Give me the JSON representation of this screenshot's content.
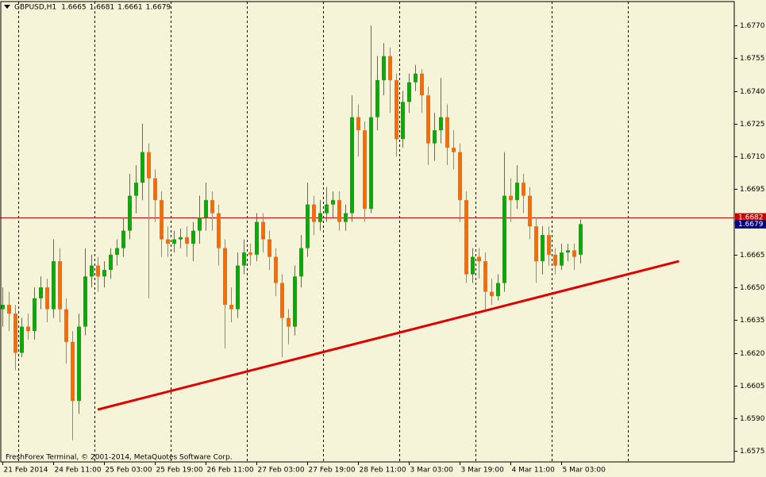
{
  "chart_data": {
    "type": "candlestick",
    "title": "GBPUSD,H1",
    "header_ohlc": [
      1.6665,
      1.6681,
      1.6661,
      1.6679
    ],
    "footer_text": "FreshForex Terminal, © 2001-2014, MetaQuotes Software Corp.",
    "up_color": "#00b000",
    "down_color": "#ff6a00",
    "open": [
      1.664,
      1.6642,
      1.6638,
      1.662,
      1.6632,
      1.663,
      1.6645,
      1.665,
      1.664,
      1.6662,
      1.664,
      1.6625,
      1.6598,
      1.6632,
      1.6655,
      1.666,
      1.6655,
      1.6658,
      1.6665,
      1.6668,
      1.6676,
      1.6692,
      1.6698,
      1.6712,
      1.67,
      1.669,
      1.6672,
      1.667,
      1.6672,
      1.6673,
      1.667,
      1.6676,
      1.6682,
      1.669,
      1.6684,
      1.6668,
      1.6642,
      1.664,
      1.666,
      1.6666,
      1.6665,
      1.668,
      1.6672,
      1.6664,
      1.6652,
      1.6636,
      1.6632,
      1.6655,
      1.6668,
      1.6688,
      1.668,
      1.6684,
      1.6688,
      1.669,
      1.668,
      1.6684,
      1.6728,
      1.6722,
      1.6686,
      1.6728,
      1.6745,
      1.6756,
      1.6745,
      1.6718,
      1.6735,
      1.6744,
      1.6748,
      1.6738,
      1.6716,
      1.6722,
      1.6728,
      1.6714,
      1.6712,
      1.669,
      1.6656,
      1.6664,
      1.6662,
      1.6648,
      1.6646,
      1.6652,
      1.6692,
      1.669,
      1.6698,
      1.6692,
      1.6678,
      1.6662,
      1.6674,
      1.6665,
      1.666,
      1.6666,
      1.6667,
      1.6665
    ],
    "high": [
      1.665,
      1.6648,
      1.6642,
      1.6636,
      1.6638,
      1.665,
      1.6655,
      1.6654,
      1.6672,
      1.6668,
      1.6645,
      1.663,
      1.6638,
      1.6668,
      1.6665,
      1.6664,
      1.6662,
      1.6668,
      1.6672,
      1.6682,
      1.6702,
      1.6706,
      1.6725,
      1.6716,
      1.6704,
      1.6694,
      1.6678,
      1.6676,
      1.6677,
      1.6678,
      1.668,
      1.6692,
      1.6698,
      1.6694,
      1.6688,
      1.6672,
      1.665,
      1.6666,
      1.6672,
      1.667,
      1.6684,
      1.6684,
      1.6676,
      1.6668,
      1.6656,
      1.664,
      1.666,
      1.6674,
      1.6698,
      1.6692,
      1.669,
      1.6696,
      1.6694,
      1.6694,
      1.6688,
      1.6738,
      1.6734,
      1.6726,
      1.677,
      1.6756,
      1.6762,
      1.676,
      1.6748,
      1.674,
      1.6748,
      1.6752,
      1.675,
      1.6742,
      1.673,
      1.6746,
      1.6734,
      1.6722,
      1.6716,
      1.6694,
      1.6668,
      1.6668,
      1.6666,
      1.6654,
      1.6656,
      1.6712,
      1.67,
      1.6706,
      1.6702,
      1.6696,
      1.6682,
      1.6678,
      1.6678,
      1.6668,
      1.667,
      1.667,
      1.667,
      1.6681
    ],
    "low": [
      1.6632,
      1.663,
      1.6612,
      1.6618,
      1.6626,
      1.6626,
      1.664,
      1.6634,
      1.6636,
      1.6634,
      1.6615,
      1.658,
      1.6592,
      1.6628,
      1.665,
      1.6648,
      1.665,
      1.6654,
      1.666,
      1.6664,
      1.6672,
      1.6684,
      1.669,
      1.6645,
      1.668,
      1.6664,
      1.6664,
      1.6666,
      1.6668,
      1.6664,
      1.6662,
      1.667,
      1.6676,
      1.6676,
      1.666,
      1.6622,
      1.6634,
      1.6636,
      1.6656,
      1.666,
      1.6662,
      1.6666,
      1.6658,
      1.6646,
      1.6618,
      1.6624,
      1.6628,
      1.665,
      1.6664,
      1.6674,
      1.6676,
      1.668,
      1.6682,
      1.6676,
      1.6676,
      1.668,
      1.671,
      1.668,
      1.6684,
      1.6722,
      1.6738,
      1.673,
      1.671,
      1.6714,
      1.673,
      1.674,
      1.673,
      1.6706,
      1.6708,
      1.6716,
      1.6706,
      1.6704,
      1.668,
      1.6652,
      1.6652,
      1.6654,
      1.664,
      1.6642,
      1.6644,
      1.6648,
      1.668,
      1.6686,
      1.6684,
      1.6672,
      1.6652,
      1.6656,
      1.666,
      1.6656,
      1.6658,
      1.6662,
      1.6658,
      1.6661
    ],
    "close": [
      1.6642,
      1.6638,
      1.662,
      1.6632,
      1.663,
      1.6645,
      1.665,
      1.664,
      1.6662,
      1.664,
      1.6625,
      1.6598,
      1.6632,
      1.6655,
      1.666,
      1.6655,
      1.6658,
      1.6665,
      1.6668,
      1.6676,
      1.6692,
      1.6698,
      1.6712,
      1.67,
      1.669,
      1.6672,
      1.667,
      1.6672,
      1.6673,
      1.667,
      1.6676,
      1.6682,
      1.669,
      1.6684,
      1.6668,
      1.6642,
      1.664,
      1.666,
      1.6666,
      1.6665,
      1.668,
      1.6672,
      1.6664,
      1.6652,
      1.6636,
      1.6632,
      1.6655,
      1.6668,
      1.6688,
      1.668,
      1.6684,
      1.6688,
      1.669,
      1.668,
      1.6684,
      1.6728,
      1.6722,
      1.6686,
      1.6728,
      1.6745,
      1.6756,
      1.6745,
      1.6718,
      1.6735,
      1.6744,
      1.6748,
      1.6738,
      1.6716,
      1.6722,
      1.6728,
      1.6714,
      1.6712,
      1.669,
      1.6656,
      1.6664,
      1.6662,
      1.6648,
      1.6646,
      1.6652,
      1.6692,
      1.669,
      1.6698,
      1.6692,
      1.6678,
      1.6662,
      1.6674,
      1.6665,
      1.666,
      1.6666,
      1.6667,
      1.6664,
      1.6679
    ],
    "xlim": [
      -0.4,
      115.3
    ],
    "ylim": [
      1.657,
      1.6781
    ],
    "xticks": [
      {
        "value": 0,
        "label": "21 Feb 2014"
      },
      {
        "value": 8,
        "label": "24 Feb 11:00"
      },
      {
        "value": 16,
        "label": "25 Feb 03:00"
      },
      {
        "value": 24,
        "label": "25 Feb 19:00"
      },
      {
        "value": 32,
        "label": "26 Feb 11:00"
      },
      {
        "value": 40,
        "label": "27 Feb 03:00"
      },
      {
        "value": 48,
        "label": "27 Feb 19:00"
      },
      {
        "value": 56,
        "label": "28 Feb 11:00"
      },
      {
        "value": 64,
        "label": "3 Mar 03:00"
      },
      {
        "value": 72,
        "label": "3 Mar 19:00"
      },
      {
        "value": 80,
        "label": "4 Mar 11:00"
      },
      {
        "value": 88,
        "label": "5 Mar 03:00"
      }
    ],
    "yticks": [
      1.6575,
      {
        "value": 1.659,
        "label": "1.6590"
      },
      1.6605,
      {
        "value": 1.662,
        "label": "1.6620"
      },
      1.6635,
      {
        "value": 1.665,
        "label": "1.6650"
      },
      1.6665,
      {
        "value": 1.668,
        "label": "1.6680"
      },
      1.6695,
      {
        "value": 1.671,
        "label": "1.6710"
      },
      1.6725,
      {
        "value": 1.674,
        "label": "1.6740"
      },
      1.6755,
      {
        "value": 1.677,
        "label": "1.6770"
      }
    ],
    "xgrid": [
      2.5,
      14.5,
      26.5,
      38.5,
      50.5,
      62.5,
      74.5,
      86.5,
      98.5
    ],
    "hline": {
      "value": 1.6682,
      "color": "#d00000"
    },
    "last_price": {
      "value": 1.6679,
      "color": "#000080"
    },
    "trendline": {
      "x": [
        15,
        106.6
      ],
      "y": [
        1.6594,
        1.6662
      ],
      "color": "#e00000"
    }
  }
}
